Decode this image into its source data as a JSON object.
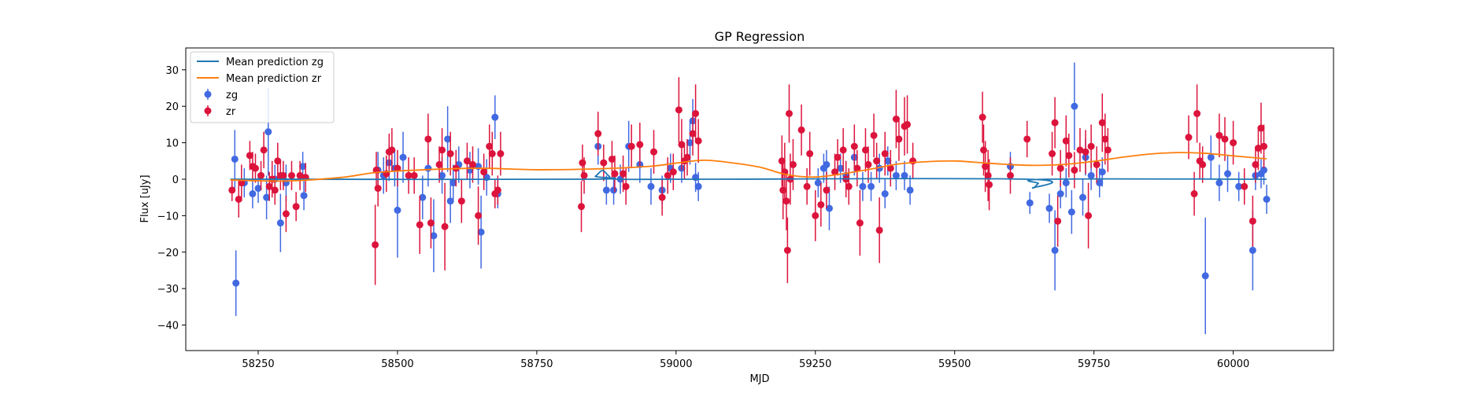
{
  "chart_data": {
    "type": "scatter",
    "title": "GP Regression",
    "xlabel": "MJD",
    "ylabel": "Flux [uJy]",
    "xlim": [
      58120,
      60180
    ],
    "ylim": [
      -47,
      36
    ],
    "x_ticks": [
      58250,
      58500,
      58750,
      59000,
      59250,
      59500,
      59750,
      60000
    ],
    "y_ticks": [
      -40,
      -30,
      -20,
      -10,
      0,
      10,
      20,
      30
    ],
    "legend_position": "upper left",
    "legend": [
      "Mean prediction zg",
      "Mean prediction zr",
      "zg",
      "zr"
    ],
    "colors": {
      "zg": "#4169e1",
      "zr": "#dc143c",
      "mean_zg": "#1f77b4",
      "mean_zr": "#ff7f0e"
    },
    "series": [
      {
        "name": "Mean prediction zg",
        "kind": "line",
        "x": [
          58200,
          58840,
          58855,
          58868,
          58880,
          58895,
          59050,
          59630,
          59640,
          59650,
          59665,
          60060
        ],
        "y": [
          0,
          0,
          0.8,
          2.4,
          0.8,
          0,
          0,
          0,
          -2.4,
          -1.2,
          0,
          0
        ]
      },
      {
        "name": "Mean prediction zr",
        "kind": "line",
        "x": [
          58200,
          58300,
          58400,
          58460,
          58550,
          58650,
          58750,
          58850,
          58950,
          59000,
          59050,
          59100,
          59150,
          59200,
          59250,
          59300,
          59350,
          59400,
          59450,
          59500,
          59550,
          59600,
          59650,
          59700,
          59750,
          59800,
          59850,
          59900,
          59950,
          60000,
          60060
        ],
        "y": [
          -0.2,
          -0.5,
          0.5,
          1.8,
          2.6,
          3,
          2.6,
          2.8,
          3.5,
          4.4,
          5.2,
          4.5,
          3.3,
          1.2,
          0.6,
          1.5,
          2.8,
          4.2,
          4.8,
          5,
          4.5,
          4,
          3.8,
          4.1,
          4.9,
          6,
          6.9,
          7.3,
          7.1,
          6.4,
          5.6
        ]
      },
      {
        "name": "zg",
        "kind": "errorbar",
        "points": [
          [
            58208,
            5.5,
            8
          ],
          [
            58210,
            -28.5,
            9
          ],
          [
            58225,
            -1,
            4
          ],
          [
            58240,
            -4,
            4
          ],
          [
            58250,
            -2.5,
            4
          ],
          [
            58265,
            -5,
            6
          ],
          [
            58268,
            13,
            12
          ],
          [
            58280,
            0,
            4
          ],
          [
            58290,
            -12,
            8
          ],
          [
            58300,
            -1,
            5
          ],
          [
            58330,
            3.5,
            4
          ],
          [
            58332,
            -4.5,
            4
          ],
          [
            58465,
            2.5,
            5
          ],
          [
            58475,
            1,
            5
          ],
          [
            58485,
            4.5,
            5
          ],
          [
            58495,
            3,
            5
          ],
          [
            58500,
            -8.5,
            13
          ],
          [
            58510,
            6,
            7
          ],
          [
            58545,
            -5,
            6
          ],
          [
            58555,
            3,
            5
          ],
          [
            58565,
            -15.5,
            10
          ],
          [
            58580,
            1,
            5
          ],
          [
            58590,
            11,
            9
          ],
          [
            58595,
            -6,
            6
          ],
          [
            58600,
            -1,
            5
          ],
          [
            58610,
            4,
            5
          ],
          [
            58630,
            2.5,
            5
          ],
          [
            58645,
            3.5,
            5
          ],
          [
            58650,
            -14.5,
            10
          ],
          [
            58660,
            0.5,
            5
          ],
          [
            58675,
            17,
            6
          ],
          [
            58680,
            -4,
            4
          ],
          [
            58860,
            9,
            5
          ],
          [
            58875,
            -3,
            4
          ],
          [
            58888,
            -3,
            4
          ],
          [
            58900,
            0,
            4
          ],
          [
            58915,
            9,
            7
          ],
          [
            58935,
            4,
            5
          ],
          [
            58955,
            -2,
            5
          ],
          [
            58975,
            -3,
            4
          ],
          [
            58990,
            3,
            4
          ],
          [
            59010,
            3,
            4
          ],
          [
            59025,
            10,
            6
          ],
          [
            59030,
            16,
            6
          ],
          [
            59035,
            0.5,
            4
          ],
          [
            59040,
            -2,
            4
          ],
          [
            59255,
            -1,
            4
          ],
          [
            59265,
            3,
            4
          ],
          [
            59270,
            4,
            4
          ],
          [
            59275,
            -8,
            6
          ],
          [
            59295,
            3,
            4
          ],
          [
            59305,
            1,
            4
          ],
          [
            59320,
            6,
            5
          ],
          [
            59335,
            -2,
            4
          ],
          [
            59350,
            -2,
            4
          ],
          [
            59365,
            3,
            4
          ],
          [
            59375,
            -4,
            4
          ],
          [
            59380,
            5,
            4
          ],
          [
            59395,
            1,
            4
          ],
          [
            59410,
            1,
            4
          ],
          [
            59420,
            -3,
            4
          ],
          [
            59600,
            3.5,
            4
          ],
          [
            59635,
            -6.5,
            3
          ],
          [
            59670,
            -8,
            4
          ],
          [
            59680,
            -19.5,
            11
          ],
          [
            59690,
            -4,
            4
          ],
          [
            59700,
            -1,
            4
          ],
          [
            59710,
            -9,
            6
          ],
          [
            59715,
            20,
            12
          ],
          [
            59730,
            -5,
            5
          ],
          [
            59735,
            6,
            5
          ],
          [
            59745,
            1,
            4
          ],
          [
            59760,
            -1,
            4
          ],
          [
            59765,
            2,
            4
          ],
          [
            59950,
            -26.5,
            16
          ],
          [
            59960,
            6,
            6
          ],
          [
            59975,
            -1,
            5
          ],
          [
            59990,
            1.5,
            5
          ],
          [
            60010,
            -2,
            4
          ],
          [
            60035,
            -19.5,
            11
          ],
          [
            60040,
            1,
            4
          ],
          [
            60050,
            1.5,
            4
          ],
          [
            60055,
            2.5,
            4
          ],
          [
            60060,
            -5.5,
            4
          ]
        ]
      },
      {
        "name": "zr",
        "kind": "errorbar",
        "points": [
          [
            58203,
            -3,
            3
          ],
          [
            58215,
            -5.5,
            5
          ],
          [
            58220,
            -1,
            5
          ],
          [
            58235,
            6.5,
            4
          ],
          [
            58240,
            3.5,
            4
          ],
          [
            58245,
            3,
            4
          ],
          [
            58255,
            1,
            4
          ],
          [
            58260,
            8,
            5
          ],
          [
            58270,
            -2,
            4
          ],
          [
            58275,
            0,
            5
          ],
          [
            58280,
            -3,
            4
          ],
          [
            58285,
            5,
            5
          ],
          [
            58290,
            1,
            4
          ],
          [
            58295,
            1,
            4
          ],
          [
            58300,
            -9.5,
            5
          ],
          [
            58310,
            1,
            4
          ],
          [
            58318,
            -7.5,
            4
          ],
          [
            58325,
            1,
            4
          ],
          [
            58335,
            0.5,
            4
          ],
          [
            58460,
            -18,
            11
          ],
          [
            58462,
            2.5,
            5
          ],
          [
            58465,
            -2.5,
            5
          ],
          [
            58480,
            1.5,
            5
          ],
          [
            58485,
            7.5,
            5
          ],
          [
            58490,
            8,
            6
          ],
          [
            58500,
            3,
            5
          ],
          [
            58520,
            1,
            5
          ],
          [
            58530,
            1,
            5
          ],
          [
            58540,
            -12.5,
            8
          ],
          [
            58555,
            11,
            7
          ],
          [
            58560,
            -12,
            7
          ],
          [
            58575,
            4,
            5
          ],
          [
            58580,
            8,
            6
          ],
          [
            58585,
            -13,
            12
          ],
          [
            58595,
            7,
            6
          ],
          [
            58605,
            3,
            5
          ],
          [
            58615,
            -6,
            6
          ],
          [
            58625,
            5,
            5
          ],
          [
            58635,
            4,
            5
          ],
          [
            58645,
            -10,
            8
          ],
          [
            58655,
            2,
            5
          ],
          [
            58665,
            9,
            6
          ],
          [
            58670,
            7,
            6
          ],
          [
            58675,
            -4,
            4
          ],
          [
            58680,
            -3,
            4
          ],
          [
            58685,
            7,
            6
          ],
          [
            58830,
            -7.5,
            7
          ],
          [
            58832,
            4.5,
            5
          ],
          [
            58835,
            1,
            5
          ],
          [
            58860,
            12.5,
            6
          ],
          [
            58870,
            4.5,
            5
          ],
          [
            58885,
            5.5,
            5
          ],
          [
            58890,
            1.5,
            5
          ],
          [
            58905,
            1.5,
            5
          ],
          [
            58910,
            -2,
            5
          ],
          [
            58920,
            9,
            6
          ],
          [
            58935,
            9.5,
            6
          ],
          [
            58960,
            7.5,
            6
          ],
          [
            58975,
            -5,
            5
          ],
          [
            58985,
            1,
            5
          ],
          [
            58995,
            2,
            5
          ],
          [
            59005,
            19,
            9
          ],
          [
            59010,
            9.5,
            7
          ],
          [
            59015,
            5,
            5
          ],
          [
            59020,
            6,
            5
          ],
          [
            59030,
            12.5,
            6
          ],
          [
            59035,
            18,
            8
          ],
          [
            59040,
            10.5,
            6
          ],
          [
            59190,
            5,
            7
          ],
          [
            59192,
            -3,
            8
          ],
          [
            59195,
            2,
            8
          ],
          [
            59198,
            -6,
            8
          ],
          [
            59200,
            -19.5,
            9
          ],
          [
            59203,
            18,
            8
          ],
          [
            59205,
            0,
            7
          ],
          [
            59210,
            4,
            7
          ],
          [
            59225,
            13.5,
            7
          ],
          [
            59235,
            -2,
            5
          ],
          [
            59240,
            7,
            6
          ],
          [
            59250,
            -10,
            7
          ],
          [
            59260,
            -7,
            6
          ],
          [
            59270,
            -3,
            5
          ],
          [
            59285,
            2,
            5
          ],
          [
            59290,
            6,
            5
          ],
          [
            59300,
            8,
            6
          ],
          [
            59305,
            0,
            5
          ],
          [
            59310,
            -2,
            5
          ],
          [
            59320,
            9,
            6
          ],
          [
            59325,
            3,
            5
          ],
          [
            59330,
            -12,
            9
          ],
          [
            59340,
            8,
            6
          ],
          [
            59345,
            4,
            5
          ],
          [
            59355,
            12,
            6
          ],
          [
            59360,
            5,
            5
          ],
          [
            59365,
            -14,
            9
          ],
          [
            59375,
            7,
            6
          ],
          [
            59385,
            3,
            5
          ],
          [
            59395,
            16.5,
            8
          ],
          [
            59400,
            11,
            6
          ],
          [
            59410,
            14.5,
            8
          ],
          [
            59415,
            15,
            8
          ],
          [
            59425,
            5,
            5
          ],
          [
            59550,
            17,
            7
          ],
          [
            59552,
            8,
            7
          ],
          [
            59555,
            3.5,
            7
          ],
          [
            59560,
            1,
            7
          ],
          [
            59562,
            -1.5,
            7
          ],
          [
            59600,
            1,
            5
          ],
          [
            59630,
            11,
            5
          ],
          [
            59675,
            7,
            6
          ],
          [
            59680,
            15.5,
            7
          ],
          [
            59685,
            -11.5,
            7
          ],
          [
            59690,
            3,
            5
          ],
          [
            59700,
            10.5,
            7
          ],
          [
            59705,
            6.5,
            6
          ],
          [
            59715,
            2.5,
            5
          ],
          [
            59725,
            8,
            6
          ],
          [
            59735,
            7.5,
            6
          ],
          [
            59740,
            -10,
            9
          ],
          [
            59745,
            9,
            6
          ],
          [
            59755,
            4,
            5
          ],
          [
            59765,
            15.5,
            8
          ],
          [
            59770,
            11,
            7
          ],
          [
            59775,
            8,
            6
          ],
          [
            59920,
            11.5,
            6
          ],
          [
            59930,
            -4,
            6
          ],
          [
            59935,
            18,
            8
          ],
          [
            59940,
            5,
            5
          ],
          [
            59945,
            4,
            5
          ],
          [
            59975,
            12,
            6
          ],
          [
            59985,
            11,
            6
          ],
          [
            60000,
            10,
            6
          ],
          [
            60020,
            -2,
            5
          ],
          [
            60035,
            -11.5,
            7
          ],
          [
            60040,
            4,
            5
          ],
          [
            60045,
            8.5,
            6
          ],
          [
            60050,
            14,
            7
          ],
          [
            60055,
            9,
            6
          ]
        ]
      }
    ]
  }
}
